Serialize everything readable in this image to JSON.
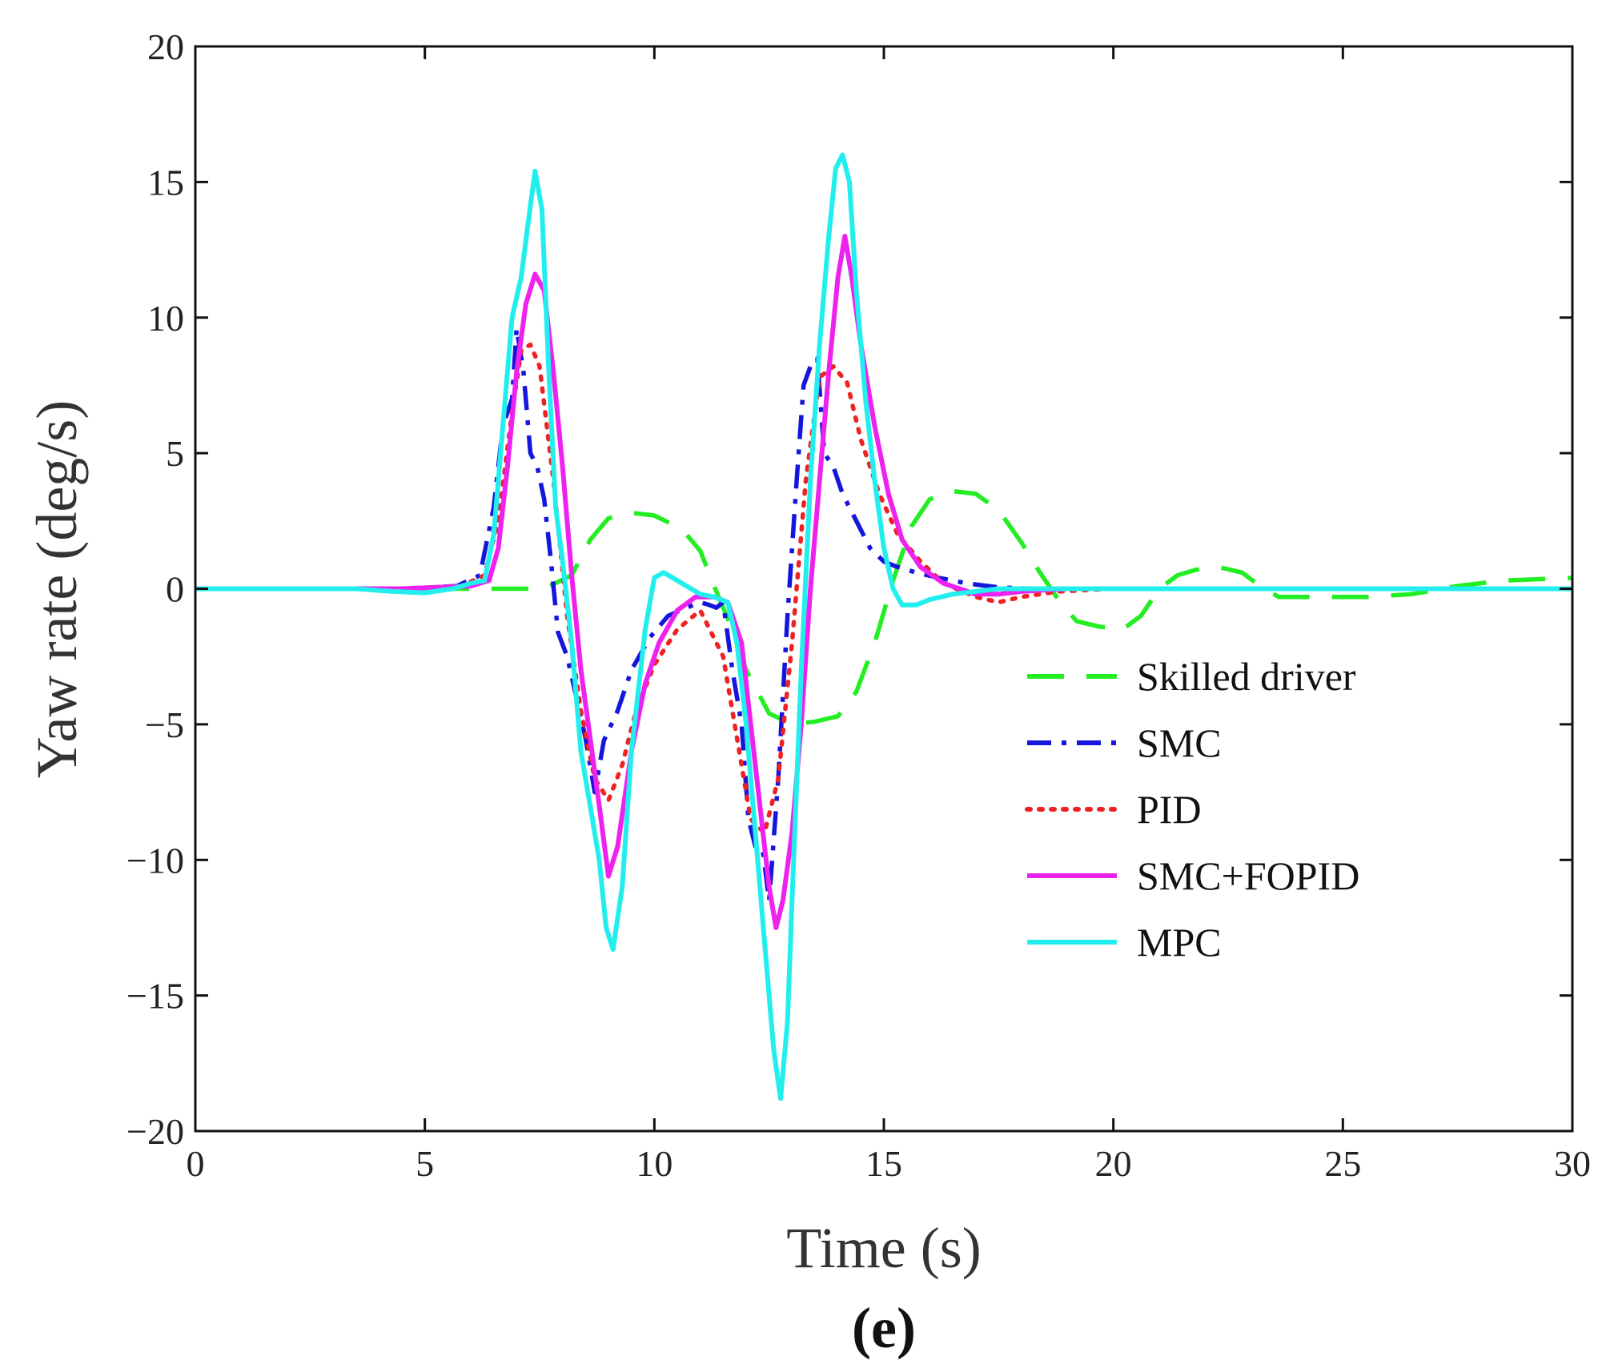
{
  "chart_data": {
    "type": "line",
    "title": "",
    "xlabel": "Time (s)",
    "ylabel": "Yaw rate (deg/s)",
    "caption": "(e)",
    "xlim": [
      0,
      30
    ],
    "ylim": [
      -20,
      20
    ],
    "xticks": [
      0,
      5,
      10,
      15,
      20,
      25,
      30
    ],
    "yticks": [
      -20,
      -15,
      -10,
      -5,
      0,
      5,
      10,
      15,
      20
    ],
    "xtick_labels": [
      "0",
      "5",
      "10",
      "15",
      "20",
      "25",
      "30"
    ],
    "ytick_labels": [
      "−20",
      "−15",
      "−10",
      "−5",
      "0",
      "5",
      "10",
      "15",
      "20"
    ],
    "grid": false,
    "legend_position": "lower-right",
    "series": [
      {
        "name": "Skilled driver",
        "color": "#22ee22",
        "style": "dashed",
        "x": [
          0,
          6.5,
          7.6,
          8.2,
          8.6,
          9.0,
          9.5,
          10.0,
          10.6,
          11.0,
          11.3,
          11.7,
          12.0,
          12.5,
          13.0,
          13.5,
          14.0,
          14.4,
          14.8,
          15.2,
          15.6,
          16.0,
          16.5,
          17.0,
          17.5,
          18.0,
          18.4,
          18.8,
          19.2,
          19.7,
          20.2,
          20.6,
          21.0,
          21.4,
          21.8,
          22.3,
          22.8,
          23.2,
          23.6,
          24.5,
          25.5,
          26.5,
          27.5,
          28.5,
          30
        ],
        "y": [
          0,
          0,
          0,
          0.5,
          1.8,
          2.6,
          2.8,
          2.7,
          2.2,
          1.4,
          0.1,
          -1.5,
          -3.0,
          -4.6,
          -5.0,
          -4.9,
          -4.7,
          -3.8,
          -2.0,
          0.3,
          2.3,
          3.3,
          3.6,
          3.5,
          2.9,
          1.7,
          0.6,
          -0.4,
          -1.2,
          -1.4,
          -1.5,
          -1.0,
          0.0,
          0.5,
          0.7,
          0.8,
          0.6,
          0.1,
          -0.3,
          -0.3,
          -0.3,
          -0.2,
          0.1,
          0.3,
          0.4
        ]
      },
      {
        "name": "SMC",
        "color": "#1515dd",
        "style": "dashdot",
        "x": [
          0,
          4.5,
          5.7,
          6.2,
          6.5,
          6.7,
          6.9,
          7.0,
          7.15,
          7.3,
          7.45,
          7.6,
          7.75,
          7.9,
          8.1,
          8.3,
          8.5,
          8.7,
          8.9,
          9.2,
          9.5,
          9.9,
          10.3,
          10.7,
          11.0,
          11.2,
          11.35,
          11.5,
          11.7,
          11.9,
          12.05,
          12.2,
          12.35,
          12.5,
          12.7,
          12.9,
          13.1,
          13.25,
          13.4,
          13.55,
          13.7,
          13.9,
          14.1,
          14.4,
          14.7,
          15.0,
          15.3,
          15.7,
          16.2,
          16.8,
          17.5,
          18.2,
          19.0,
          20.0,
          22.0,
          24.0,
          26.0,
          30
        ],
        "y": [
          0,
          0,
          0.1,
          0.5,
          3.0,
          6.0,
          7.0,
          9.6,
          8.0,
          5.0,
          4.5,
          3.3,
          1.0,
          -1.6,
          -2.5,
          -4.0,
          -5.5,
          -7.5,
          -5.6,
          -4.5,
          -3.0,
          -1.8,
          -1.0,
          -0.7,
          -0.5,
          -0.6,
          -0.7,
          -0.5,
          -3.0,
          -5.0,
          -8.5,
          -9.5,
          -9.5,
          -11.5,
          -7.0,
          -1.0,
          4.0,
          7.5,
          8.2,
          8.5,
          5.0,
          4.5,
          3.5,
          2.5,
          1.5,
          1.0,
          0.8,
          0.6,
          0.4,
          0.2,
          0.05,
          0.0,
          0.0,
          0.0,
          0.0,
          0.0,
          0.0,
          0.0
        ]
      },
      {
        "name": "PID",
        "color": "#ee2222",
        "style": "dotted",
        "x": [
          0,
          4.5,
          5.8,
          6.3,
          6.6,
          6.9,
          7.1,
          7.3,
          7.5,
          7.8,
          8.1,
          8.4,
          8.7,
          9.0,
          9.3,
          9.6,
          10.0,
          10.5,
          11.0,
          11.5,
          11.8,
          12.1,
          12.4,
          12.7,
          13.0,
          13.3,
          13.6,
          13.9,
          14.2,
          14.5,
          14.9,
          15.3,
          15.8,
          16.3,
          17.0,
          17.5,
          18.0,
          18.8,
          20,
          30
        ],
        "y": [
          0,
          0,
          0.1,
          0.5,
          2.5,
          6.5,
          8.8,
          9.0,
          8.2,
          4.0,
          -1.0,
          -4.5,
          -7.0,
          -7.8,
          -6.5,
          -4.5,
          -2.8,
          -1.5,
          -0.8,
          -2.5,
          -5.5,
          -8.5,
          -9.0,
          -7.0,
          -2.0,
          4.0,
          7.8,
          8.2,
          7.6,
          5.5,
          3.5,
          2.0,
          1.0,
          0.2,
          -0.3,
          -0.5,
          -0.3,
          -0.1,
          0.0,
          0.0
        ]
      },
      {
        "name": "SMC+FOPID",
        "color": "#ee22ee",
        "style": "solid",
        "x": [
          0,
          4.5,
          6.0,
          6.4,
          6.6,
          6.8,
          7.0,
          7.2,
          7.4,
          7.6,
          7.8,
          8.0,
          8.2,
          8.4,
          8.6,
          8.8,
          9.0,
          9.2,
          9.5,
          9.8,
          10.1,
          10.5,
          10.9,
          11.3,
          11.6,
          11.9,
          12.1,
          12.3,
          12.5,
          12.65,
          12.8,
          13.0,
          13.2,
          13.4,
          13.6,
          13.8,
          14.0,
          14.15,
          14.3,
          14.5,
          14.8,
          15.1,
          15.4,
          15.8,
          16.3,
          17.0,
          17.5,
          18.0,
          19.0,
          30
        ],
        "y": [
          0,
          0,
          0.1,
          0.3,
          1.5,
          4.5,
          8.0,
          10.5,
          11.6,
          11.0,
          8.0,
          4.5,
          0.5,
          -3.0,
          -5.5,
          -8.0,
          -10.6,
          -9.5,
          -6.0,
          -3.5,
          -2.0,
          -0.8,
          -0.3,
          -0.3,
          -0.5,
          -2.0,
          -5.0,
          -8.0,
          -11.0,
          -12.5,
          -11.5,
          -9.0,
          -5.0,
          0.0,
          4.0,
          8.0,
          11.5,
          13.0,
          11.5,
          9.0,
          6.0,
          3.5,
          1.8,
          0.8,
          0.2,
          -0.2,
          -0.2,
          -0.1,
          0.0,
          0.0
        ]
      },
      {
        "name": "MPC",
        "color": "#22eeee",
        "style": "solid",
        "x": [
          0,
          3.5,
          4.3,
          5.0,
          5.6,
          6.0,
          6.3,
          6.5,
          6.7,
          6.9,
          7.1,
          7.25,
          7.4,
          7.55,
          7.7,
          7.85,
          8.0,
          8.2,
          8.4,
          8.6,
          8.8,
          8.95,
          9.1,
          9.3,
          9.5,
          9.8,
          10.0,
          10.2,
          10.4,
          10.7,
          11.0,
          11.3,
          11.6,
          11.8,
          12.0,
          12.2,
          12.4,
          12.6,
          12.75,
          12.9,
          13.0,
          13.2,
          13.4,
          13.6,
          13.8,
          13.95,
          14.1,
          14.25,
          14.4,
          14.6,
          14.8,
          15.0,
          15.2,
          15.4,
          15.7,
          16.0,
          16.5,
          17.0,
          17.5,
          18.0,
          30
        ],
        "y": [
          0,
          0,
          -0.1,
          -0.15,
          0.0,
          0.2,
          0.3,
          2.0,
          6.0,
          10.0,
          11.5,
          13.5,
          15.4,
          14.0,
          8.0,
          3.0,
          1.0,
          -2.0,
          -6.0,
          -8.0,
          -10.0,
          -12.5,
          -13.3,
          -11.0,
          -6.0,
          -1.5,
          0.4,
          0.6,
          0.4,
          0.1,
          -0.2,
          -0.3,
          -0.5,
          -2.0,
          -5.0,
          -9.0,
          -13.0,
          -17.0,
          -18.8,
          -16.0,
          -11.5,
          -3.0,
          4.0,
          9.0,
          13.0,
          15.5,
          16.0,
          15.0,
          11.0,
          7.0,
          4.0,
          1.5,
          0.0,
          -0.6,
          -0.6,
          -0.4,
          -0.2,
          -0.1,
          0.0,
          0.0,
          0.0
        ]
      }
    ]
  }
}
